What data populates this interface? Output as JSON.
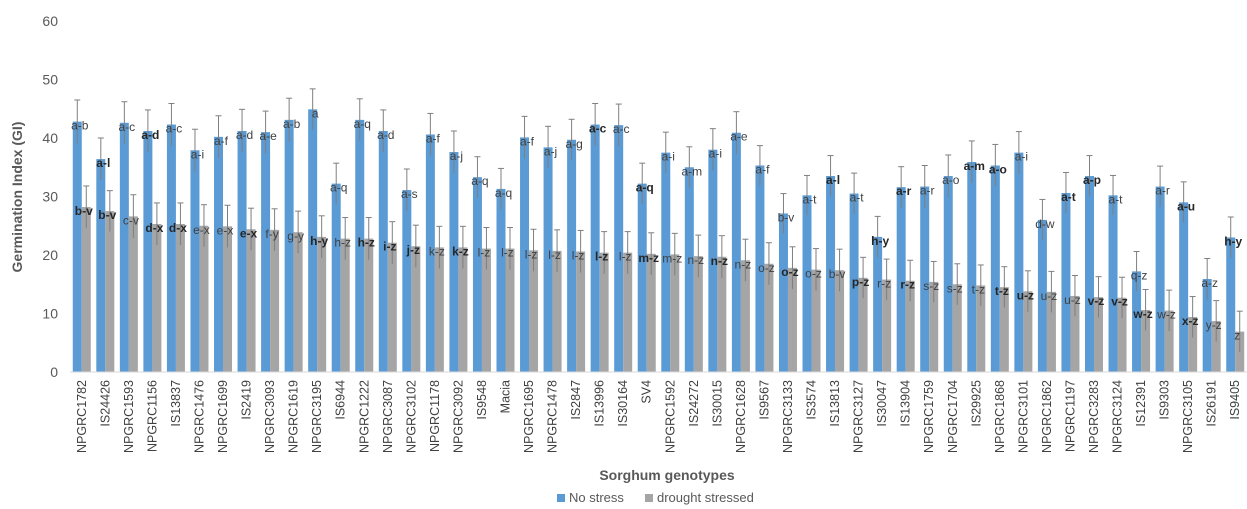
{
  "chart_data": {
    "type": "bar",
    "title": "",
    "xlabel": "Sorghum genotypes",
    "ylabel": "Germination Index (GI)",
    "ylim": [
      0,
      60
    ],
    "yticks": [
      0,
      10,
      20,
      30,
      40,
      50,
      60
    ],
    "grid": false,
    "legend_position": "bottom",
    "error_bars": true,
    "categories": [
      "NPGRC1782",
      "IS24426",
      "NPGRC1593",
      "NPGRC1156",
      "IS13837",
      "NPGRC1476",
      "NPGRC1699",
      "IS2419",
      "NPGRC3093",
      "NPGRC1619",
      "NPGRC3195",
      "IS6944",
      "NPGRC1222",
      "NPGRC3087",
      "NPGRC3102",
      "NPGRC1178",
      "NPGRC3092",
      "IS9548",
      "Macia",
      "NPGRC1695",
      "NPGRC1478",
      "IS2847",
      "IS13996",
      "IS30164",
      "SV4",
      "NPGRC1592",
      "IS24272",
      "IS30015",
      "NPGRC1628",
      "IS9567",
      "NPGRC3133",
      "IS3574",
      "IS13813",
      "NPGRC3127",
      "IS30047",
      "IS13904",
      "NPGRC1759",
      "NPGRC1704",
      "IS29925",
      "NPGRC1868",
      "NPGRC3101",
      "NPGRC1862",
      "NPGRC1197",
      "NPGRC3283",
      "NPGRC3124",
      "IS12391",
      "IS9303",
      "NPGRC3105",
      "IS26191",
      "IS9405"
    ],
    "series": [
      {
        "name": "No stress",
        "color": "#5B9BD5",
        "values": [
          42.8,
          36.4,
          42.6,
          41.2,
          42.3,
          37.9,
          40.2,
          41.2,
          41.0,
          43.1,
          44.9,
          32.2,
          43.1,
          41.2,
          31.1,
          40.6,
          37.6,
          33.3,
          31.3,
          40.1,
          38.4,
          39.7,
          42.3,
          42.2,
          32.2,
          37.5,
          35.0,
          38.0,
          40.9,
          35.3,
          27.1,
          30.2,
          33.5,
          30.5,
          23.1,
          31.6,
          31.7,
          33.5,
          35.9,
          35.3,
          37.5,
          26.0,
          30.6,
          33.5,
          30.2,
          17.2,
          31.7,
          29.0,
          15.9,
          23.0
        ],
        "errors": [
          3.7,
          3.6,
          3.6,
          3.6,
          3.6,
          3.6,
          3.6,
          3.7,
          3.6,
          3.7,
          3.5,
          3.5,
          3.6,
          3.6,
          3.6,
          3.6,
          3.6,
          3.5,
          3.5,
          3.6,
          3.6,
          3.5,
          3.6,
          3.6,
          3.5,
          3.5,
          3.5,
          3.6,
          3.6,
          3.4,
          3.4,
          3.4,
          3.5,
          3.5,
          3.5,
          3.5,
          3.6,
          3.6,
          3.6,
          3.6,
          3.6,
          3.5,
          3.5,
          3.5,
          3.4,
          3.4,
          3.5,
          3.5,
          3.5,
          3.5
        ],
        "labels": [
          "a-b",
          "a-l",
          "a-c",
          "a-d",
          "a-c",
          "a-i",
          "a-f",
          "a-d",
          "a-e",
          "a-b",
          "a",
          "a-q",
          "a-q",
          "a-d",
          "a-s",
          "a-f",
          "a-j",
          "a-q",
          "a-q",
          "a-f",
          "a-j",
          "a-g",
          "a-c",
          "a-c",
          "a-q",
          "a-i",
          "a-m",
          "a-i",
          "a-e",
          "a-f",
          "b-v",
          "a-t",
          "a-l",
          "a-t",
          "h-y",
          "a-r",
          "a-r",
          "a-o",
          "a-m",
          "a-o",
          "a-i",
          "d-w",
          "a-t",
          "a-p",
          "a-t",
          "q-z",
          "a-r",
          "a-u",
          "a-z",
          "h-y"
        ],
        "labels_bold": [
          false,
          true,
          false,
          true,
          false,
          false,
          false,
          false,
          false,
          false,
          false,
          false,
          false,
          false,
          false,
          false,
          false,
          false,
          false,
          false,
          false,
          false,
          true,
          false,
          true,
          false,
          false,
          false,
          false,
          false,
          false,
          false,
          true,
          false,
          true,
          true,
          false,
          false,
          true,
          true,
          false,
          false,
          true,
          true,
          false,
          false,
          false,
          true,
          false,
          true
        ]
      },
      {
        "name": "drought stressed",
        "color": "#A5A5A5",
        "values": [
          28.2,
          27.5,
          26.6,
          25.3,
          25.3,
          25.0,
          24.9,
          24.4,
          24.3,
          23.9,
          23.1,
          22.8,
          22.8,
          22.1,
          21.5,
          21.3,
          21.3,
          21.1,
          21.1,
          20.8,
          20.7,
          20.6,
          20.4,
          20.4,
          20.2,
          20.1,
          19.8,
          19.7,
          19.1,
          18.5,
          17.8,
          17.5,
          17.4,
          16.1,
          15.8,
          15.6,
          15.4,
          15.0,
          14.8,
          14.5,
          13.8,
          13.7,
          13.0,
          12.8,
          12.7,
          10.6,
          10.5,
          9.4,
          8.7,
          6.9
        ],
        "errors": [
          3.6,
          3.5,
          3.7,
          3.6,
          3.6,
          3.6,
          3.6,
          3.6,
          3.6,
          3.6,
          3.6,
          3.6,
          3.6,
          3.6,
          3.6,
          3.6,
          3.6,
          3.6,
          3.6,
          3.6,
          3.6,
          3.6,
          3.6,
          3.6,
          3.6,
          3.6,
          3.6,
          3.6,
          3.6,
          3.6,
          3.6,
          3.6,
          3.6,
          3.5,
          3.5,
          3.5,
          3.5,
          3.5,
          3.5,
          3.5,
          3.5,
          3.5,
          3.5,
          3.5,
          3.5,
          3.5,
          3.5,
          3.5,
          3.5,
          3.5
        ],
        "labels": [
          "b-v",
          "b-v",
          "c-v",
          "d-x",
          "d-x",
          "e-x",
          "e-x",
          "e-x",
          "f-y",
          "g-y",
          "h-y",
          "h-z",
          "h-z",
          "i-z",
          "j-z",
          "k-z",
          "k-z",
          "l-z",
          "l-z",
          "l-z",
          "l-z",
          "l-z",
          "l-z",
          "l-z",
          "m-z",
          "m-z",
          "n-z",
          "n-z",
          "n-z",
          "o-z",
          "o-z",
          "o-z",
          "b-v",
          "p-z",
          "r-z",
          "r-z",
          "s-z",
          "s-z",
          "t-z",
          "t-z",
          "u-z",
          "u-z",
          "u-z",
          "v-z",
          "v-z",
          "w-z",
          "w-z",
          "x-z",
          "y-z",
          "z"
        ],
        "labels_bold": [
          true,
          true,
          false,
          true,
          true,
          false,
          false,
          true,
          false,
          false,
          true,
          false,
          true,
          true,
          true,
          false,
          true,
          false,
          false,
          false,
          false,
          false,
          true,
          false,
          true,
          false,
          false,
          true,
          false,
          false,
          true,
          false,
          false,
          true,
          false,
          true,
          false,
          false,
          false,
          true,
          true,
          false,
          false,
          true,
          true,
          true,
          false,
          true,
          false,
          false
        ]
      }
    ]
  }
}
